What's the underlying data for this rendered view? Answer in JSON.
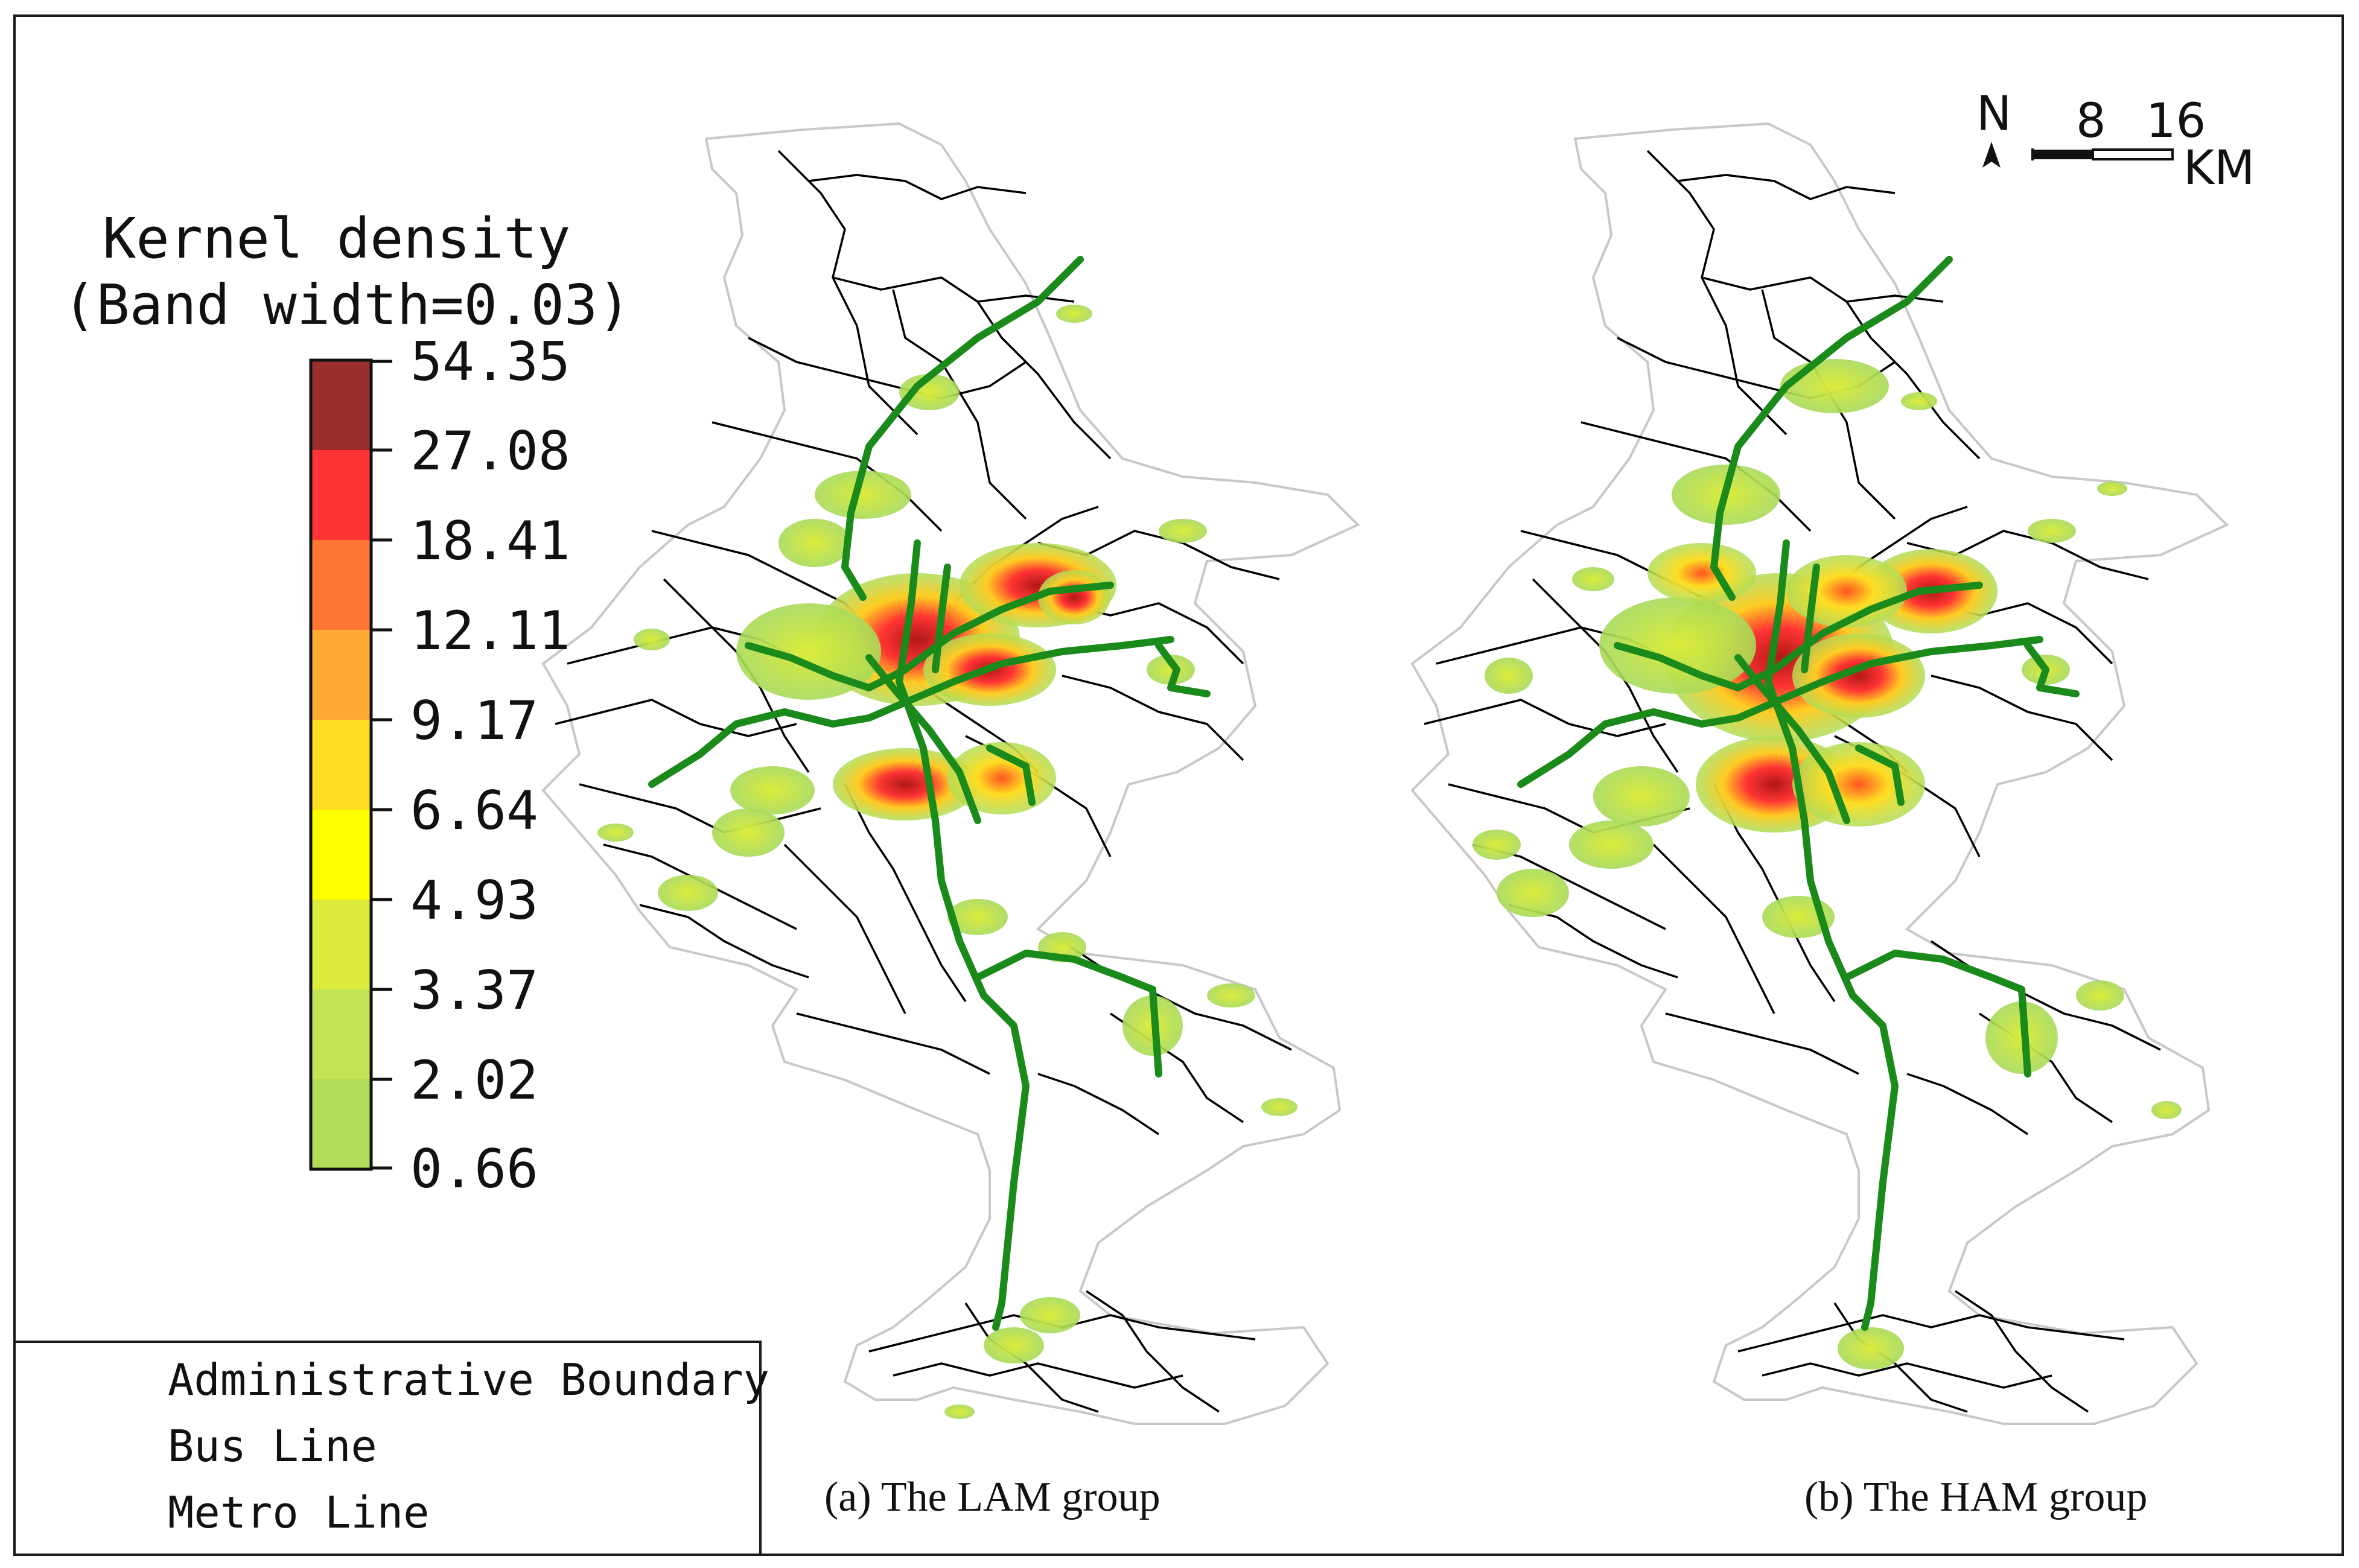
{
  "legend": {
    "title_line1": "Kernel density",
    "title_line2": "(Band width=0.03)",
    "ticks": [
      "54.35",
      "27.08",
      "18.41",
      "12.11",
      "9.17",
      "6.64",
      "4.93",
      "3.37",
      "2.02",
      "0.66"
    ],
    "colors": [
      "#9b2d2d",
      "#ff3333",
      "#ff7733",
      "#ffaa33",
      "#ffdd22",
      "#ffff00",
      "#dcec3a",
      "#c4e356",
      "#b0dd58"
    ]
  },
  "layer_legend": {
    "items": [
      {
        "label": "Administrative Boundary",
        "color": "#c0c0c0"
      },
      {
        "label": "Bus Line",
        "color": "#000000"
      },
      {
        "label": "Metro Line",
        "color": "#1a8a1a"
      }
    ]
  },
  "panels": [
    {
      "caption": "(a) The LAM group"
    },
    {
      "caption": "(b) The HAM group"
    }
  ],
  "north_arrow": {
    "label": "N"
  },
  "scale_bar": {
    "labels": [
      "8",
      "16"
    ],
    "unit": "KM"
  },
  "colors": {
    "metro": "#1a8a1a",
    "bus": "#000000",
    "boundary": "#c8c8c8"
  }
}
